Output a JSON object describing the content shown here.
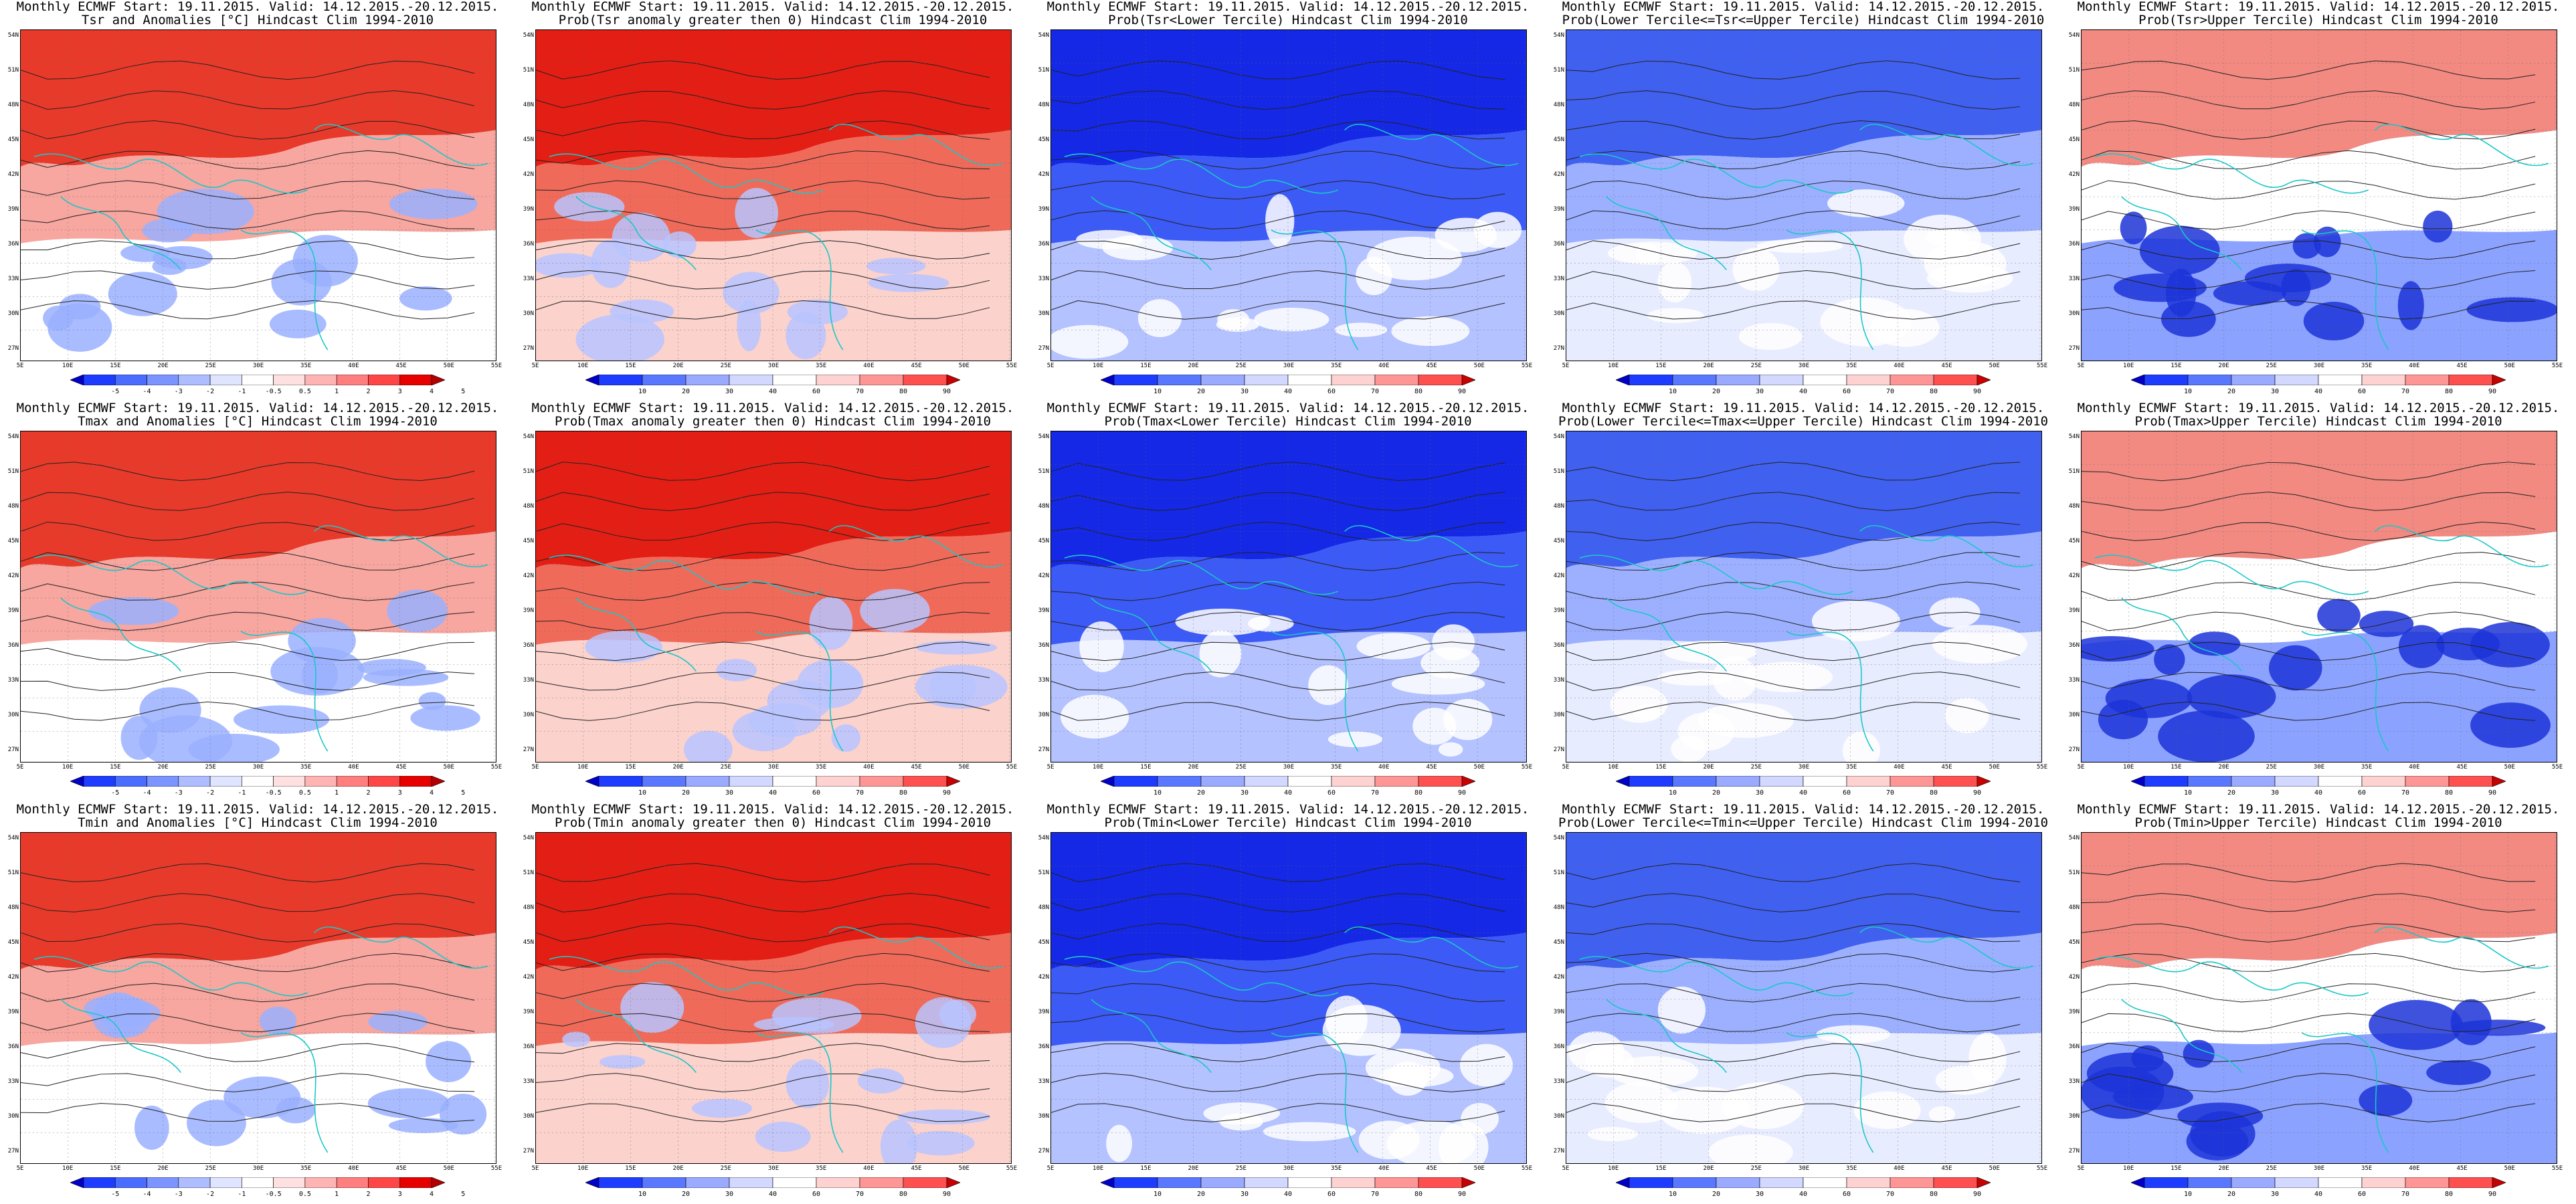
{
  "title_line1": "Monthly ECMWF Start: 19.11.2015. Valid: 14.12.2015.-20.12.2015.",
  "lat_labels": [
    "54N",
    "51N",
    "48N",
    "45N",
    "42N",
    "39N",
    "36N",
    "33N",
    "30N",
    "27N"
  ],
  "lon_labels": [
    "5E",
    "10E",
    "15E",
    "20E",
    "25E",
    "30E",
    "35E",
    "40E",
    "45E",
    "50E",
    "55E"
  ],
  "colorbars": {
    "anomaly": {
      "ticks": [
        "-5",
        "-4",
        "-3",
        "-2",
        "-1",
        "-0.5",
        "0.5",
        "1",
        "2",
        "3",
        "4",
        "5"
      ],
      "colors": [
        "#0000c8",
        "#1e3cff",
        "#4a6cff",
        "#7c94ff",
        "#aebdff",
        "#dfe4ff",
        "#ffffff",
        "#ffe0e0",
        "#ffb4b4",
        "#ff7e7e",
        "#ff4646",
        "#e60000",
        "#b40000"
      ]
    },
    "prob": {
      "ticks": [
        "10",
        "20",
        "30",
        "40",
        "60",
        "70",
        "80",
        "90"
      ],
      "colors": [
        "#0000c8",
        "#1e3cff",
        "#5a78ff",
        "#9aaaff",
        "#d2d8ff",
        "#ffffff",
        "#ffd2d2",
        "#ff9696",
        "#ff5050",
        "#c80000"
      ]
    }
  },
  "rows": [
    {
      "panels": [
        {
          "line2": "Tsr and Anomalies [°C] Hindcast Clim 1994-2010",
          "bar": "anomaly",
          "scheme": "warm"
        },
        {
          "line2": "Prob(Tsr anomaly greater then 0) Hindcast Clim 1994-2010",
          "bar": "prob",
          "scheme": "red"
        },
        {
          "line2": "Prob(Tsr<Lower Tercile) Hindcast Clim 1994-2010",
          "bar": "prob",
          "scheme": "blue"
        },
        {
          "line2": "Prob(Lower Tercile<=Tsr<=Upper Tercile) Hindcast Clim 1994-2010",
          "bar": "prob",
          "scheme": "mixed"
        },
        {
          "line2": "Prob(Tsr>Upper Tercile) Hindcast Clim 1994-2010",
          "bar": "prob",
          "scheme": "redblue"
        }
      ]
    },
    {
      "panels": [
        {
          "line2": "Tmax and Anomalies [°C] Hindcast Clim 1994-2010",
          "bar": "anomaly",
          "scheme": "warm"
        },
        {
          "line2": "Prob(Tmax anomaly greater then 0) Hindcast Clim 1994-2010",
          "bar": "prob",
          "scheme": "red"
        },
        {
          "line2": "Prob(Tmax<Lower Tercile) Hindcast Clim 1994-2010",
          "bar": "prob",
          "scheme": "blue"
        },
        {
          "line2": "Prob(Lower Tercile<=Tmax<=Upper Tercile) Hindcast Clim 1994-2010",
          "bar": "prob",
          "scheme": "mixed"
        },
        {
          "line2": "Prob(Tmax>Upper Tercile) Hindcast Clim 1994-2010",
          "bar": "prob",
          "scheme": "redblue"
        }
      ]
    },
    {
      "panels": [
        {
          "line2": "Tmin and Anomalies [°C] Hindcast Clim 1994-2010",
          "bar": "anomaly",
          "scheme": "warm"
        },
        {
          "line2": "Prob(Tmin anomaly greater then 0) Hindcast Clim 1994-2010",
          "bar": "prob",
          "scheme": "red"
        },
        {
          "line2": "Prob(Tmin<Lower Tercile) Hindcast Clim 1994-2010",
          "bar": "prob",
          "scheme": "blue"
        },
        {
          "line2": "Prob(Lower Tercile<=Tmin<=Upper Tercile) Hindcast Clim 1994-2010",
          "bar": "prob",
          "scheme": "mixed"
        },
        {
          "line2": "Prob(Tmin>Upper Tercile) Hindcast Clim 1994-2010",
          "bar": "prob",
          "scheme": "redblue"
        }
      ]
    }
  ]
}
